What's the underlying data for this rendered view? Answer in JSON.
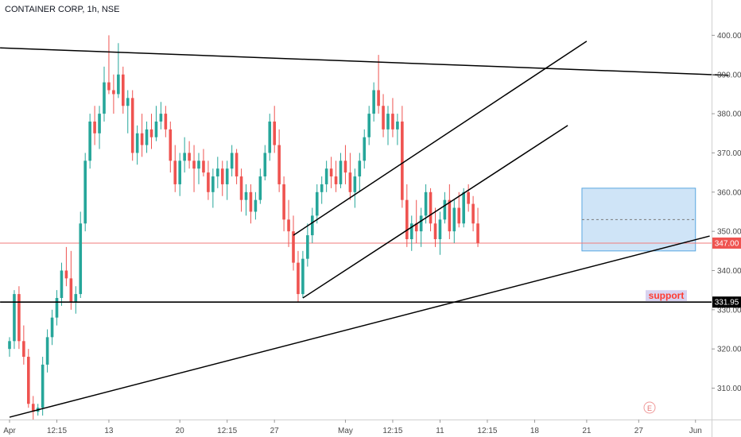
{
  "title": "CONTAINER CORP, 1h, NSE",
  "colors": {
    "up": "#26a69a",
    "down": "#ef5350",
    "trendline": "#000000",
    "rangeFill": "#cfe4f7",
    "rangeBorder": "#59a7e0",
    "priceLine": "#f27b7b",
    "supportLabel": "#ff3b30",
    "supportLabelBg": "#d8d3f0"
  },
  "annotations": {
    "support_label": "support",
    "e_marker": "E"
  },
  "chart_data": {
    "type": "candlestick",
    "symbol": "CONTAINER CORP",
    "interval": "1h",
    "exchange": "NSE",
    "ylim": [
      302,
      409
    ],
    "y_ticks": [
      310,
      320,
      330,
      340,
      350,
      360,
      370,
      380,
      390,
      400
    ],
    "x_ticks": [
      {
        "label": "Apr",
        "index": 0
      },
      {
        "label": "12:15",
        "index": 10
      },
      {
        "label": "13",
        "index": 21
      },
      {
        "label": "20",
        "index": 36
      },
      {
        "label": "12:15",
        "index": 46
      },
      {
        "label": "27",
        "index": 56
      },
      {
        "label": "May",
        "index": 71
      },
      {
        "label": "12:15",
        "index": 81
      },
      {
        "label": "11",
        "index": 91
      },
      {
        "label": "12:15",
        "index": 101
      },
      {
        "label": "18",
        "index": 111
      },
      {
        "label": "21",
        "index": 122
      },
      {
        "label": "27",
        "index": 133
      },
      {
        "label": "Jun",
        "index": 145
      }
    ],
    "last_price": 347.0,
    "support_level": 331.95,
    "candles": [
      [
        320,
        323,
        318,
        322
      ],
      [
        322,
        335,
        320,
        334
      ],
      [
        334,
        336,
        320,
        322
      ],
      [
        322,
        326,
        316,
        318
      ],
      [
        318,
        320,
        305,
        306
      ],
      [
        306,
        308,
        302,
        304
      ],
      [
        304,
        306,
        303,
        305
      ],
      [
        305,
        318,
        303,
        316
      ],
      [
        316,
        325,
        314,
        323
      ],
      [
        323,
        330,
        321,
        328
      ],
      [
        328,
        335,
        326,
        333
      ],
      [
        333,
        342,
        331,
        340
      ],
      [
        340,
        346,
        336,
        338
      ],
      [
        338,
        345,
        330,
        332
      ],
      [
        332,
        336,
        329,
        334
      ],
      [
        334,
        355,
        333,
        352
      ],
      [
        352,
        370,
        350,
        368
      ],
      [
        368,
        380,
        366,
        378
      ],
      [
        378,
        382,
        372,
        375
      ],
      [
        375,
        382,
        371,
        380
      ],
      [
        380,
        392,
        378,
        388
      ],
      [
        388,
        400,
        385,
        386
      ],
      [
        386,
        390,
        380,
        385
      ],
      [
        385,
        398,
        384,
        390
      ],
      [
        390,
        392,
        380,
        382
      ],
      [
        382,
        386,
        375,
        384
      ],
      [
        384,
        386,
        368,
        370
      ],
      [
        370,
        377,
        367,
        375
      ],
      [
        375,
        380,
        369,
        372
      ],
      [
        372,
        378,
        370,
        376
      ],
      [
        376,
        380,
        371,
        374
      ],
      [
        374,
        382,
        373,
        378
      ],
      [
        378,
        383,
        376,
        380
      ],
      [
        380,
        382,
        374,
        376
      ],
      [
        376,
        378,
        365,
        368
      ],
      [
        368,
        372,
        360,
        362
      ],
      [
        362,
        370,
        359,
        368
      ],
      [
        368,
        374,
        365,
        370
      ],
      [
        370,
        373,
        366,
        368
      ],
      [
        368,
        372,
        360,
        366
      ],
      [
        366,
        370,
        362,
        368
      ],
      [
        368,
        371,
        364,
        365
      ],
      [
        365,
        368,
        358,
        360
      ],
      [
        360,
        366,
        356,
        364
      ],
      [
        364,
        369,
        361,
        366
      ],
      [
        366,
        368,
        359,
        362
      ],
      [
        362,
        368,
        358,
        366
      ],
      [
        366,
        372,
        364,
        370
      ],
      [
        370,
        371,
        362,
        364
      ],
      [
        364,
        366,
        355,
        358
      ],
      [
        358,
        362,
        354,
        360
      ],
      [
        360,
        362,
        352,
        355
      ],
      [
        355,
        360,
        353,
        358
      ],
      [
        358,
        366,
        357,
        364
      ],
      [
        364,
        372,
        363,
        370
      ],
      [
        370,
        380,
        368,
        378
      ],
      [
        378,
        382,
        370,
        372
      ],
      [
        372,
        376,
        360,
        362
      ],
      [
        362,
        364,
        350,
        353
      ],
      [
        353,
        358,
        346,
        350
      ],
      [
        350,
        354,
        340,
        342
      ],
      [
        342,
        345,
        332,
        334
      ],
      [
        334,
        345,
        333,
        343
      ],
      [
        343,
        352,
        341,
        349
      ],
      [
        349,
        356,
        347,
        354
      ],
      [
        354,
        362,
        352,
        360
      ],
      [
        360,
        364,
        357,
        362
      ],
      [
        362,
        368,
        360,
        366
      ],
      [
        366,
        369,
        361,
        364
      ],
      [
        364,
        368,
        360,
        362
      ],
      [
        362,
        370,
        361,
        368
      ],
      [
        368,
        372,
        362,
        365
      ],
      [
        365,
        370,
        358,
        360
      ],
      [
        360,
        366,
        356,
        364
      ],
      [
        364,
        370,
        360,
        368
      ],
      [
        368,
        376,
        366,
        374
      ],
      [
        374,
        382,
        372,
        380
      ],
      [
        380,
        388,
        378,
        386
      ],
      [
        386,
        395,
        380,
        382
      ],
      [
        382,
        385,
        374,
        376
      ],
      [
        376,
        382,
        372,
        380
      ],
      [
        380,
        384,
        374,
        376
      ],
      [
        376,
        380,
        372,
        378
      ],
      [
        378,
        382,
        356,
        358
      ],
      [
        358,
        362,
        346,
        348
      ],
      [
        348,
        354,
        345,
        352
      ],
      [
        352,
        358,
        347,
        350
      ],
      [
        350,
        356,
        346,
        354
      ],
      [
        354,
        362,
        352,
        360
      ],
      [
        360,
        361,
        350,
        352
      ],
      [
        352,
        356,
        346,
        348
      ],
      [
        348,
        355,
        344,
        353
      ],
      [
        353,
        360,
        352,
        358
      ],
      [
        358,
        362,
        348,
        350
      ],
      [
        350,
        358,
        347,
        356
      ],
      [
        356,
        360,
        351,
        352
      ],
      [
        352,
        361,
        351,
        360
      ],
      [
        360,
        362,
        355,
        357
      ],
      [
        357,
        359,
        350,
        352
      ],
      [
        352,
        356,
        346,
        347
      ]
    ],
    "lines": [
      {
        "name": "upper-trendline",
        "points": [
          [
            -2,
            396.8
          ],
          [
            152,
            389.8
          ]
        ]
      },
      {
        "name": "lower-support-trendline",
        "points": [
          [
            0,
            302.6
          ],
          [
            148,
            348.8
          ]
        ]
      },
      {
        "name": "channel-upper",
        "points": [
          [
            60,
            349
          ],
          [
            122,
            398.5
          ]
        ]
      },
      {
        "name": "channel-lower",
        "points": [
          [
            62,
            333
          ],
          [
            118,
            377
          ]
        ]
      },
      {
        "name": "support-line",
        "points": [
          [
            -2,
            331.95
          ],
          [
            165,
            331.95
          ]
        ]
      }
    ],
    "range_box": {
      "x_start": 121,
      "x_end": 145,
      "y_low": 345,
      "y_high": 361,
      "y_mid": 353
    },
    "xlabel": "",
    "ylabel": ""
  }
}
